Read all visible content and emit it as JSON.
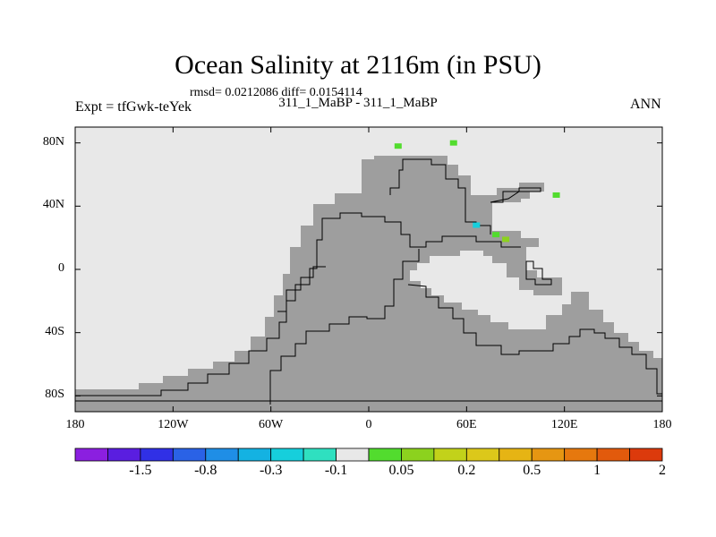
{
  "chart_data": {
    "type": "heatmap",
    "title": "Ocean Salinity at 2116m (in PSU)",
    "stats": "rmsd= 0.0212086 diff= 0.0154114",
    "subtitle": "311_1_MaBP - 311_1_MaBP",
    "expt": "Expt = tfGwk-teYek",
    "season": "ANN",
    "lon_range": [
      -180,
      180
    ],
    "lat_range": [
      -90,
      90
    ],
    "x_ticks": [
      "180",
      "120W",
      "60W",
      "0",
      "60E",
      "120E",
      "180"
    ],
    "y_ticks": [
      "80N",
      "40N",
      "0",
      "40S",
      "80S"
    ],
    "colorbar": {
      "labels": [
        "-1.5",
        "-0.8",
        "-0.3",
        "-0.1",
        "0.05",
        "0.2",
        "0.5",
        "1",
        "2"
      ],
      "colors": [
        "#8b1fe0",
        "#5a1ee0",
        "#3030e6",
        "#2a62e6",
        "#1f8ee6",
        "#14b2e2",
        "#16cfdc",
        "#2fe0c0",
        "#e8e8e8",
        "#52dc2e",
        "#8cd21e",
        "#c2d21a",
        "#dcc81a",
        "#e6b414",
        "#e69612",
        "#e6780e",
        "#e25a0c",
        "#dc3a0c"
      ]
    },
    "land_color": "#e8e8e8",
    "ocean_color": "#9e9e9e",
    "note_cells": [
      {
        "lon": 18,
        "lat": 78,
        "color": "#52dc2e"
      },
      {
        "lon": 52,
        "lat": 80,
        "color": "#52dc2e"
      },
      {
        "lon": 66,
        "lat": 28,
        "color": "#16cfdc"
      },
      {
        "lon": 78,
        "lat": 22,
        "color": "#52dc2e"
      },
      {
        "lon": 84,
        "lat": 19,
        "color": "#8cd21e"
      },
      {
        "lon": 115,
        "lat": 47,
        "color": "#52dc2e"
      }
    ]
  }
}
